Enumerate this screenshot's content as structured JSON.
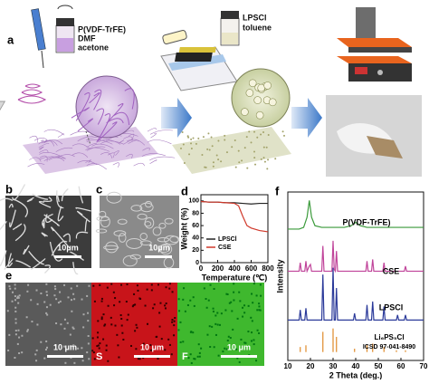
{
  "panels": {
    "a": {
      "label": "a",
      "solution": [
        "P(VDF-TrFE)",
        "DMF",
        "acetone"
      ],
      "slurry": [
        "LPSCl",
        "toluene"
      ]
    },
    "b": {
      "label": "b",
      "scale_bar": "10μm"
    },
    "c": {
      "label": "c",
      "scale_bar": "10μm"
    },
    "e": {
      "label": "e",
      "images": [
        {
          "scale_bar": "10 μm"
        },
        {
          "element": "S",
          "scale_bar": "10 μm"
        },
        {
          "element": "F",
          "scale_bar": "10 μm"
        }
      ]
    }
  },
  "chart_data": [
    {
      "type": "line",
      "label": "d",
      "x_label": "Temperature (℃)",
      "y_label": "Weight (%)",
      "xlim": [
        0,
        800
      ],
      "xticks": [
        0,
        200,
        400,
        600,
        800
      ],
      "ylim": [
        0,
        110
      ],
      "yticks": [
        0,
        20,
        40,
        60,
        80,
        100
      ],
      "legend": "lower left",
      "series": [
        {
          "name": "LPSCl",
          "color": "#222222",
          "x": [
            0,
            100,
            200,
            300,
            400,
            500,
            600,
            700,
            800
          ],
          "values": [
            99,
            98,
            98,
            97,
            97,
            96,
            95,
            96,
            96
          ]
        },
        {
          "name": "CSE",
          "color": "#d0382a",
          "x": [
            0,
            100,
            200,
            300,
            400,
            450,
            500,
            550,
            600,
            700,
            800
          ],
          "values": [
            99,
            98,
            98,
            97,
            96,
            92,
            75,
            60,
            56,
            52,
            50
          ]
        }
      ]
    },
    {
      "type": "line",
      "label": "f",
      "x_label": "2 Theta (deg.)",
      "y_label": "Intensity",
      "xlim": [
        10,
        70
      ],
      "xticks": [
        10,
        20,
        30,
        40,
        50,
        60,
        70
      ],
      "ylim": [
        5,
        105
      ],
      "series": [
        {
          "name": "P(VDF-TrFE)",
          "color": "#3a9a3a",
          "x": [
            10,
            15,
            17,
            18.5,
            19.5,
            20.5,
            22,
            25,
            30,
            35,
            38,
            40,
            42,
            45,
            50,
            55,
            60,
            65,
            70
          ],
          "values": [
            83,
            83,
            84,
            90,
            100,
            90,
            85,
            84,
            84,
            84,
            85,
            87,
            85,
            84,
            84,
            84,
            84,
            84,
            84
          ]
        },
        {
          "name": "CSE",
          "color": "#c0449a",
          "x": [
            10,
            15,
            15.5,
            16,
            17.5,
            18,
            18.5,
            19.5,
            20,
            20.5,
            25,
            25.5,
            26,
            29.5,
            30,
            30.5,
            31,
            31.5,
            32,
            44.5,
            45,
            45.5,
            47,
            47.5,
            48,
            52,
            52.5,
            53,
            61.5,
            62,
            62.5,
            70
          ],
          "values": [
            58,
            58,
            63,
            58,
            58,
            64,
            58,
            61,
            62,
            58,
            58,
            73,
            58,
            58,
            76,
            59,
            58,
            70,
            58,
            58,
            64,
            58,
            58,
            65,
            58,
            58,
            63,
            58,
            58,
            61,
            58,
            58
          ]
        },
        {
          "name": "LPSCl",
          "color": "#2b3a9a",
          "x": [
            10,
            15,
            15.5,
            16,
            17.5,
            18,
            18.5,
            25,
            25.5,
            26,
            29.5,
            30,
            30.5,
            31,
            31.5,
            32,
            39,
            39.5,
            40,
            44.5,
            45,
            45.5,
            47,
            47.5,
            48,
            52,
            52.5,
            53,
            58,
            58.5,
            59,
            61.5,
            62,
            62.5,
            70
          ],
          "values": [
            29,
            29,
            35,
            29,
            29,
            36,
            29,
            29,
            56,
            29,
            29,
            60,
            29,
            29,
            48,
            29,
            29,
            33,
            29,
            29,
            38,
            29,
            29,
            40,
            29,
            29,
            37,
            29,
            29,
            32,
            29,
            29,
            32,
            29,
            29
          ]
        }
      ],
      "reference": {
        "name": "Li₆PS₅Cl",
        "source": "ICSD 97-041-8490",
        "color": "#e08a2a",
        "baseline": 10,
        "x": [
          15.5,
          18,
          25.5,
          30,
          31.5,
          39.5,
          45,
          47.5,
          52.5,
          58,
          62
        ],
        "values": [
          13,
          14,
          22,
          24,
          19,
          12,
          14,
          15,
          13,
          11,
          11
        ]
      }
    }
  ]
}
